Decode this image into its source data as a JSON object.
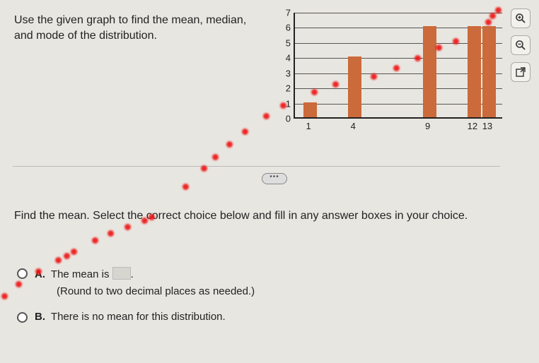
{
  "prompt": "Use the given graph to find the mean, median, and mode of the distribution.",
  "chart": {
    "type": "bar",
    "ylim": [
      0,
      7
    ],
    "ytick_step": 1,
    "y_ticks": [
      0,
      1,
      2,
      3,
      4,
      5,
      6,
      7
    ],
    "x_labels_shown": [
      "1",
      "4",
      "9",
      "12",
      "13"
    ],
    "bars": [
      {
        "x": 1,
        "h": 1
      },
      {
        "x": 4,
        "h": 4
      },
      {
        "x": 9,
        "h": 6
      },
      {
        "x": 12,
        "h": 6
      },
      {
        "x": 13,
        "h": 6
      }
    ],
    "bar_color": "#cb6a3a",
    "axis_color": "#222222",
    "grid_color": "#555555",
    "background": "#e8e6e0",
    "label_fontsize": 13
  },
  "question": "Find the mean. Select the correct choice below and fill in any answer boxes in your choice.",
  "choices": {
    "a_prefix": "A.",
    "a_text1": "The mean is",
    "a_text2": ".",
    "a_sub": "(Round to two decimal places as needed.)",
    "b_prefix": "B.",
    "b_text": "There is no mean for this distribution."
  },
  "ellipsis": "•••",
  "red_dot_color": "#ee1111"
}
